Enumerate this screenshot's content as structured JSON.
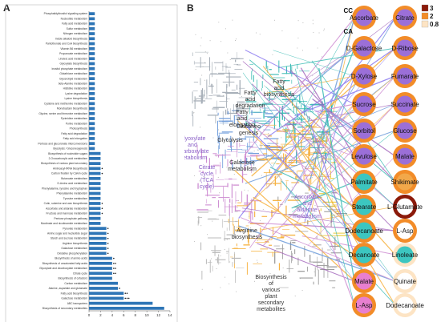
{
  "panel_a": {
    "letter": "A",
    "chart_data": {
      "type": "bar",
      "orientation": "horizontal",
      "title": "",
      "xlabel": "",
      "ylabel": "",
      "xlim": [
        0,
        14
      ],
      "xticks": [
        0,
        2,
        4,
        6,
        8,
        10,
        12,
        14
      ],
      "bar_color": "#2e75b6",
      "categories": [
        "Phosphatidylinositol signaling system",
        "Nucleotide metabolism",
        "Fatty acid metabolism",
        "Sulfur metabolism",
        "Nitrogen metabolism",
        "Indole alkaloid biosynthesis",
        "Pantothenate and CoA biosynthesis",
        "Vitamin B6 metabolism",
        "Propanoate metabolism",
        "Linoleic acid metabolism",
        "Glyoxylate biosynthesis",
        "Inositol phosphate metabolism",
        "Glutathione metabolism",
        "Glycerolipid metabolism",
        "beta-Alanine metabolism",
        "Histidine metabolism",
        "Lysine degradation",
        "Lysine biosynthesis",
        "Cysteine and methionine metabolism",
        "Monobactam biosynthesis",
        "Glycine, serine and threonine metabolism",
        "Pyrimidine metabolism",
        "Purine metabolism",
        "Photosynthesis",
        "Fatty acid degradation",
        "Fatty acid elongation",
        "Pentose and glucuronate interconversions",
        "Glycolysis / Gluconeogenesis",
        "Biosynthesis of nucleotide sugars",
        "2-Oxocarboxylic acid metabolism",
        "Biosynthesis of various plant secondary",
        "Aminoacyl-tRNA biosynthesis",
        "Carbon fixation by Calvin cycle",
        "Butanoate metabolism",
        "D-Amino acid metabolism",
        "Phenylalanine, tyrosine and tryptophan",
        "Phenylalanine metabolism",
        "Tyrosine metabolism",
        "Cutin, suberine and wax biosynthesis",
        "Ascorbate and aldarate metabolism",
        "Fructose and mannose metabolism",
        "Pentose phosphate pathway",
        "Nicotinate and nicotinamide metabolism",
        "Pyruvate metabolism",
        "Amino sugar and nucleotide sugar",
        "Starch and sucrose metabolism",
        "Arginine biosynthesis",
        "Galactose metabolism",
        "Oxidative phosphorylation",
        "Biosynthesis of amino acids",
        "Biosynthesis of unsaturated fatty acids",
        "Glyoxylate and dicarboxylate metabolism",
        "Citrate cycle",
        "Biosynthesis of cofactors",
        "Carbon metabolism",
        "Alanine, aspartate and glutamate",
        "Fatty acid biosynthesis",
        "Galactose metabolism",
        "ABC transporters",
        "Biosynthesis of secondary metabolites"
      ],
      "values": [
        1,
        1,
        1,
        1,
        1,
        1,
        1,
        1,
        1,
        1,
        1,
        1,
        1,
        1,
        1,
        1,
        1,
        1,
        1,
        1,
        1,
        1,
        1,
        1,
        1,
        1,
        1,
        1,
        2,
        2,
        2,
        2,
        2,
        2,
        2,
        2,
        2,
        2,
        2,
        2,
        2,
        2,
        2,
        3,
        3,
        3,
        3,
        3,
        3,
        4,
        4,
        4,
        4,
        4,
        5,
        5,
        6,
        6,
        11,
        13
      ],
      "stars": [
        0,
        0,
        0,
        0,
        0,
        0,
        0,
        0,
        0,
        0,
        0,
        0,
        0,
        0,
        0,
        0,
        0,
        0,
        0,
        0,
        0,
        0,
        0,
        0,
        0,
        0,
        0,
        0,
        0,
        0,
        0,
        1,
        1,
        0,
        0,
        0,
        0,
        0,
        1,
        1,
        1,
        0,
        0,
        1,
        1,
        1,
        1,
        1,
        1,
        1,
        2,
        2,
        2,
        0,
        0,
        1,
        2,
        3,
        0,
        0
      ]
    }
  },
  "panel_b": {
    "letter": "B",
    "region_labels": {
      "fatty_acid_biosynthesis": [
        "Fatty",
        "acid",
        "biosynthesis"
      ],
      "fatty_acid_degradation": [
        "Fatty",
        "acid",
        "degradation"
      ],
      "fatty_acid_elongation": [
        "Fatty",
        "acid",
        "elongation"
      ],
      "gluconeo": [
        "Gluconeo",
        "genesis"
      ],
      "glycolysis": [
        "Glycolysis"
      ],
      "glyoxylate": [
        "Glyoxylate",
        "and",
        "dicarboxylate",
        "metabolism"
      ],
      "citrate_cycle": [
        "Citrate",
        "cycle",
        "(TCA",
        "cycle)"
      ],
      "galactose": [
        "Galactose",
        "metabolism"
      ],
      "ascorbate": [
        "Ascorbate",
        "and",
        "aldarate",
        "metabolism"
      ],
      "arginine": [
        "Arginine",
        "biosynthesis"
      ],
      "secondary": [
        "Biosynthesis",
        "of",
        "various",
        "plant",
        "secondary",
        "metabolites"
      ]
    },
    "colors": {
      "fatty_acid": "#20b2aa",
      "carbohydrate": "#5b8fd6",
      "energy": "#9b59b6",
      "amino_acid": "#f5a623",
      "secondary": "#c77dcc",
      "other": "#e8c830"
    },
    "column_headers": [
      "CC",
      "CA"
    ],
    "legend": {
      "items": [
        {
          "label": "3",
          "color": "#8b1a0a"
        },
        {
          "label": "2",
          "color": "#f28c28"
        },
        {
          "label": "0.8",
          "color": "#fde4c4"
        }
      ]
    },
    "metabolite_nodes": [
      {
        "label": "Ascorbate",
        "ring": "#f28c28",
        "fill": "#9b6fd8"
      },
      {
        "label": "Citrate",
        "ring": "#f28c28",
        "fill": "#9b6fd8"
      },
      {
        "label": "D-Galactose",
        "ring": "#f28c28",
        "fill": "#9b6fd8"
      },
      {
        "label": "D-Ribose",
        "ring": "#f28c28",
        "fill": "#9b6fd8"
      },
      {
        "label": "D-Xylose",
        "ring": "#f28c28",
        "fill": "#9b6fd8"
      },
      {
        "label": "Fumarate",
        "ring": "#f28c28",
        "fill": "#9b6fd8"
      },
      {
        "label": "Sucrose",
        "ring": "#f28c28",
        "fill": "#9b6fd8"
      },
      {
        "label": "Succinate",
        "ring": "#f28c28",
        "fill": "#9b6fd8"
      },
      {
        "label": "Sorbitol",
        "ring": "#f28c28",
        "fill": "#9b6fd8"
      },
      {
        "label": "Glucose",
        "ring": "#f28c28",
        "fill": "#9b6fd8"
      },
      {
        "label": "Levulose",
        "ring": "#f28c28",
        "fill": "#9b6fd8"
      },
      {
        "label": "Malate",
        "ring": "#f28c28",
        "fill": "#9b6fd8"
      },
      {
        "label": "Palmitate",
        "ring": "#f28c28",
        "fill": "#3cc6c0"
      },
      {
        "label": "Shikimate",
        "ring": "#f28c28",
        "fill": "#f2a84a"
      },
      {
        "label": "Stearate",
        "ring": "#f28c28",
        "fill": "#3cc6c0"
      },
      {
        "label": "L-Glutamate",
        "ring": "#8b1a0a",
        "fill": "#ffffff"
      },
      {
        "label": "Dodecanoate",
        "ring": "#f28c28",
        "fill": "#3cc6c0"
      },
      {
        "label": "L-Asp",
        "ring": "#f28c28",
        "fill": "#ffffff"
      },
      {
        "label": "Decanoate",
        "ring": "#f28c28",
        "fill": "#3cc6c0"
      },
      {
        "label": "Linoleate",
        "ring": "#fde4c4",
        "fill": "#3cc6c0"
      },
      {
        "label": "Malate",
        "ring": "#f28c28",
        "fill": "#e87fd0"
      },
      {
        "label": "Quinate",
        "ring": "#fde4c4",
        "fill": "#ffffff"
      },
      {
        "label": "L-Asp",
        "ring": "#f28c28",
        "fill": "#e87fd0"
      },
      {
        "label": "Dodecanoate",
        "ring": "#fde4c4",
        "fill": "#ffffff"
      }
    ]
  }
}
